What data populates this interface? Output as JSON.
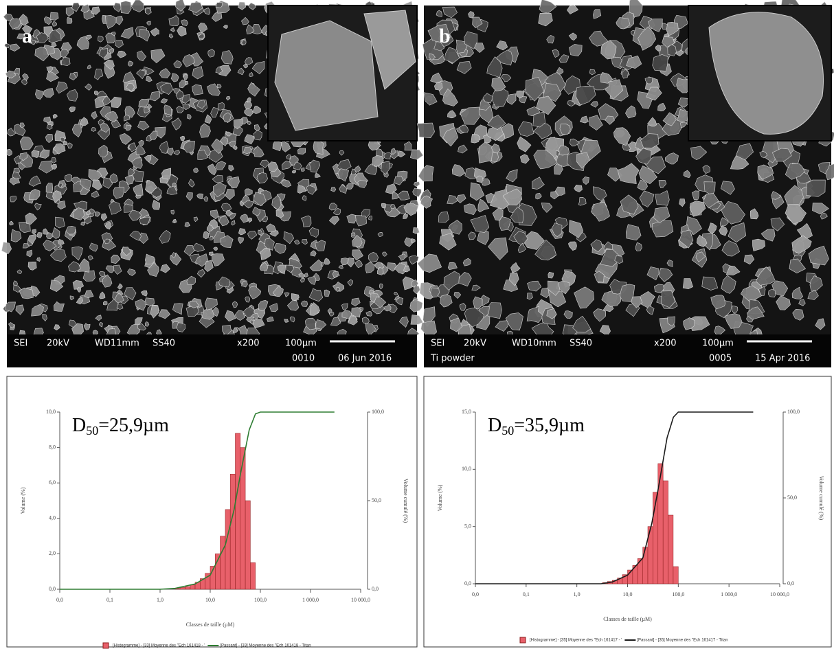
{
  "images": [
    {
      "label": "a",
      "info": {
        "mode": "SEI",
        "kv": "20kV",
        "wd": "WD11mm",
        "ss": "SS40",
        "mag": "x200",
        "scale": "100µm",
        "number": "0010",
        "date": "06 Jun 2016"
      }
    },
    {
      "label": "b",
      "info": {
        "mode": "SEI",
        "kv": "20kV",
        "wd": "WD10mm",
        "ss": "SS40",
        "mag": "x200",
        "scale": "100µm",
        "sample": "Ti powder",
        "number": "0005",
        "date": "15 Apr 2016"
      }
    }
  ],
  "chart_data": [
    {
      "type": "histogram",
      "annotation": [
        "D",
        "50",
        "=25,9µm"
      ],
      "y_label": "Volume  (%)",
      "y2_label": "Volume cumulé (%)",
      "x_label": "Classes de taille (µM)",
      "log_x": true,
      "xlim": [
        0.01,
        10000
      ],
      "xticks": [
        {
          "value": 0.01,
          "label": "0,0"
        },
        {
          "value": 0.1,
          "label": "0,1"
        },
        {
          "value": 1,
          "label": "1,0"
        },
        {
          "value": 10,
          "label": "10,0"
        },
        {
          "value": 100,
          "label": "100,0"
        },
        {
          "value": 1000,
          "label": "1 000,0"
        },
        {
          "value": 10000,
          "label": "10 000,0"
        }
      ],
      "ylim": [
        0,
        10
      ],
      "yticks": [
        {
          "value": 0,
          "label": "0,0"
        },
        {
          "value": 2,
          "label": "2,0"
        },
        {
          "value": 4,
          "label": "4,0"
        },
        {
          "value": 6,
          "label": "6,0"
        },
        {
          "value": 8,
          "label": "8,0"
        },
        {
          "value": 10,
          "label": "10,0"
        }
      ],
      "y2lim": [
        0,
        100
      ],
      "y2ticks": [
        {
          "value": 0,
          "label": "0,0"
        },
        {
          "value": 50,
          "label": "50,0"
        },
        {
          "value": 100,
          "label": "100,0"
        }
      ],
      "series": [
        {
          "name": "[Histogramme] - [33] Moyenne des \"Ech 161418 - '",
          "color": "#e8606a",
          "bins": [
            2.0,
            2.5,
            3.2,
            4.0,
            5.0,
            6.3,
            7.9,
            10.0,
            12.6,
            15.8,
            20.0,
            25.1,
            31.6,
            39.8,
            50.1,
            63.1,
            79.4
          ],
          "values": [
            0.05,
            0.1,
            0.15,
            0.25,
            0.4,
            0.6,
            0.9,
            1.3,
            2.0,
            3.0,
            4.5,
            6.5,
            8.8,
            8.0,
            5.0,
            1.5
          ]
        },
        {
          "name": "[Passant] - [33] Moyenne des \"Ech 161418 - Titan",
          "color": "#2e7d32",
          "axis": "y2",
          "x": [
            0.01,
            1,
            2,
            5,
            10,
            20,
            30,
            40,
            60,
            80,
            100,
            3000
          ],
          "values": [
            0,
            0,
            0.5,
            3,
            8,
            25,
            45,
            65,
            90,
            99,
            100,
            100
          ]
        }
      ]
    },
    {
      "type": "histogram",
      "annotation": [
        "D",
        "50",
        "=35,9µm"
      ],
      "y_label": "Volume  (%)",
      "y2_label": "Volume cumulé (%)",
      "x_label": "Classes de taille (µM)",
      "log_x": true,
      "xlim": [
        0.01,
        10000
      ],
      "xticks": [
        {
          "value": 0.01,
          "label": "0,0"
        },
        {
          "value": 0.1,
          "label": "0,1"
        },
        {
          "value": 1,
          "label": "1,0"
        },
        {
          "value": 10,
          "label": "10,0"
        },
        {
          "value": 100,
          "label": "100,0"
        },
        {
          "value": 1000,
          "label": "1 000,0"
        },
        {
          "value": 10000,
          "label": "10 000,0"
        }
      ],
      "ylim": [
        0,
        15
      ],
      "yticks": [
        {
          "value": 0,
          "label": "0,0"
        },
        {
          "value": 5,
          "label": "5,0"
        },
        {
          "value": 10,
          "label": "10,0"
        },
        {
          "value": 15,
          "label": "15,0"
        }
      ],
      "y2lim": [
        0,
        100
      ],
      "y2ticks": [
        {
          "value": 0,
          "label": "0,0"
        },
        {
          "value": 50,
          "label": "50,0"
        },
        {
          "value": 100,
          "label": "100,0"
        }
      ],
      "series": [
        {
          "name": "[Histogramme] - [35] Moyenne des \"Ech 161417 - '",
          "color": "#e8606a",
          "bins": [
            3.2,
            4.0,
            5.0,
            6.3,
            7.9,
            10.0,
            12.6,
            15.8,
            20.0,
            25.1,
            31.6,
            39.8,
            50.1,
            63.1,
            79.4,
            100
          ],
          "values": [
            0.1,
            0.2,
            0.3,
            0.5,
            0.8,
            1.2,
            1.6,
            2.2,
            3.2,
            5.0,
            8.0,
            10.5,
            9.0,
            6.0,
            1.5
          ]
        },
        {
          "name": "[Passant] - [35] Moyenne des \"Ech 161417 - Titan",
          "color": "#1a1a1a",
          "axis": "y2",
          "x": [
            0.01,
            3,
            5,
            10,
            20,
            30,
            40,
            60,
            80,
            100,
            3000
          ],
          "values": [
            0,
            0,
            1,
            5,
            15,
            35,
            55,
            85,
            97,
            100,
            100
          ]
        }
      ]
    }
  ]
}
